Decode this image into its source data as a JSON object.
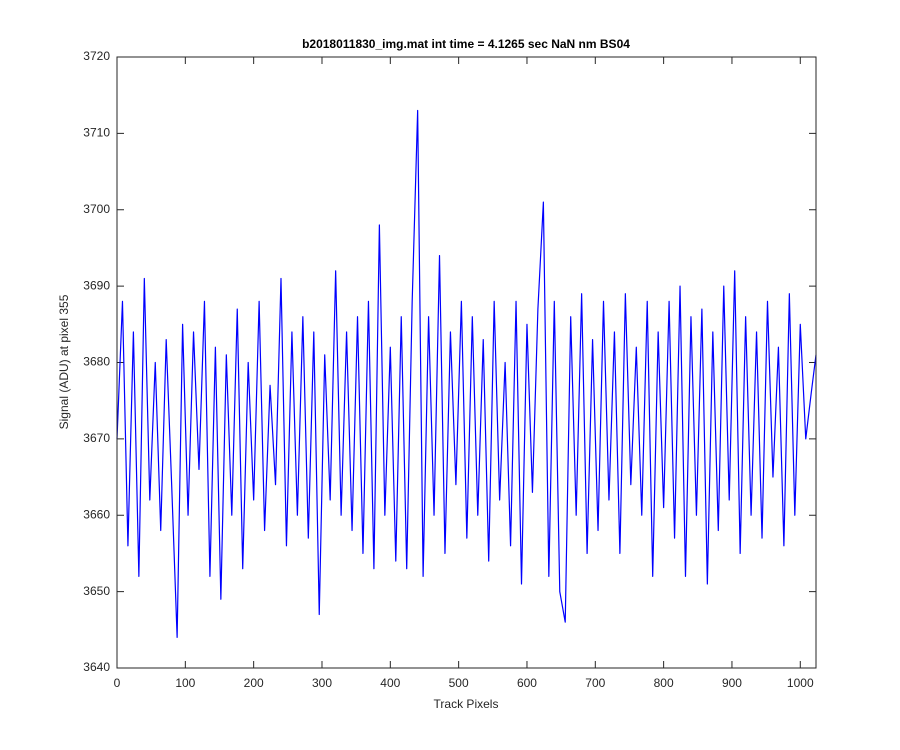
{
  "chart_data": {
    "type": "line",
    "title": "b2018011830_img.mat int time = 4.1265 sec  NaN nm BS04",
    "x_label": "Track Pixels",
    "y_label": "Signal (ADU) at pixel 355",
    "xlim": [
      0,
      1023
    ],
    "ylim": [
      3640,
      3720
    ],
    "xticks": [
      0,
      100,
      200,
      300,
      400,
      500,
      600,
      700,
      800,
      900,
      1000
    ],
    "yticks": [
      3640,
      3650,
      3660,
      3670,
      3680,
      3690,
      3700,
      3710,
      3720
    ],
    "grid": false,
    "x": [
      0,
      8,
      16,
      24,
      32,
      40,
      48,
      56,
      64,
      72,
      80,
      88,
      96,
      104,
      112,
      120,
      128,
      136,
      144,
      152,
      160,
      168,
      176,
      184,
      192,
      200,
      208,
      216,
      224,
      232,
      240,
      248,
      256,
      264,
      272,
      280,
      288,
      296,
      304,
      312,
      320,
      328,
      336,
      344,
      352,
      360,
      368,
      376,
      384,
      392,
      400,
      408,
      416,
      424,
      432,
      440,
      448,
      456,
      464,
      472,
      480,
      488,
      496,
      504,
      512,
      520,
      528,
      536,
      544,
      552,
      560,
      568,
      576,
      584,
      592,
      600,
      608,
      616,
      624,
      632,
      640,
      648,
      656,
      664,
      672,
      680,
      688,
      696,
      704,
      712,
      720,
      728,
      736,
      744,
      752,
      760,
      768,
      776,
      784,
      792,
      800,
      808,
      816,
      824,
      832,
      840,
      848,
      856,
      864,
      872,
      880,
      888,
      896,
      904,
      912,
      920,
      928,
      936,
      944,
      952,
      960,
      968,
      976,
      984,
      992,
      1000,
      1008,
      1016,
      1023
    ],
    "series": [
      {
        "color": "#0000ff",
        "values": [
          3670,
          3688,
          3656,
          3684,
          3652,
          3691,
          3662,
          3680,
          3658,
          3683,
          3664,
          3644,
          3685,
          3660,
          3684,
          3666,
          3688,
          3652,
          3682,
          3649,
          3681,
          3660,
          3687,
          3653,
          3680,
          3662,
          3688,
          3658,
          3677,
          3664,
          3691,
          3656,
          3684,
          3660,
          3686,
          3657,
          3684,
          3647,
          3681,
          3662,
          3692,
          3660,
          3684,
          3658,
          3686,
          3655,
          3688,
          3653,
          3698,
          3660,
          3682,
          3654,
          3686,
          3653,
          3688,
          3713,
          3652,
          3686,
          3660,
          3694,
          3655,
          3684,
          3664,
          3688,
          3657,
          3686,
          3660,
          3683,
          3654,
          3688,
          3662,
          3680,
          3656,
          3688,
          3651,
          3685,
          3663,
          3687,
          3701,
          3652,
          3688,
          3650,
          3646,
          3686,
          3660,
          3689,
          3655,
          3683,
          3658,
          3688,
          3662,
          3684,
          3655,
          3689,
          3664,
          3682,
          3660,
          3688,
          3652,
          3684,
          3661,
          3688,
          3657,
          3690,
          3652,
          3686,
          3660,
          3687,
          3651,
          3684,
          3658,
          3690,
          3662,
          3692,
          3655,
          3686,
          3660,
          3684,
          3657,
          3688,
          3665,
          3682,
          3656,
          3689,
          3660,
          3685,
          3670,
          3676,
          3681
        ]
      }
    ]
  }
}
